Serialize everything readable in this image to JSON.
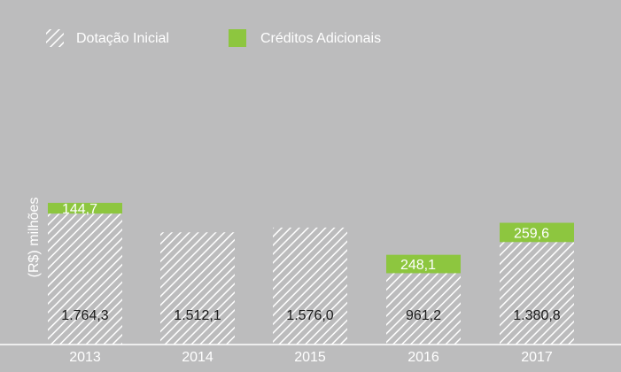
{
  "chart_data": {
    "type": "bar",
    "stacked": true,
    "categories": [
      "2013",
      "2014",
      "2015",
      "2016",
      "2017"
    ],
    "series": [
      {
        "name": "Dotação Inicial",
        "values": [
          1764.3,
          1512.1,
          1576.0,
          961.2,
          1380.8
        ],
        "labels": [
          "1.764,3",
          "1.512,1",
          "1.576,0",
          "961,2",
          "1.380,8"
        ]
      },
      {
        "name": "Créditos Adicionais",
        "values": [
          144.7,
          0,
          0,
          248.1,
          259.6
        ],
        "labels": [
          "144,7",
          "",
          "",
          "248,1",
          "259,6"
        ]
      }
    ],
    "ylabel": "(R$) milhões",
    "legend_position": "top-left",
    "grid": false,
    "colors": {
      "background": "#bcbcbd",
      "hatch_line": "#ffffff",
      "credit_fill": "#8dc63f",
      "text": "#ffffff",
      "value_text": "#1a1a1a",
      "axis": "#ffffff"
    }
  }
}
